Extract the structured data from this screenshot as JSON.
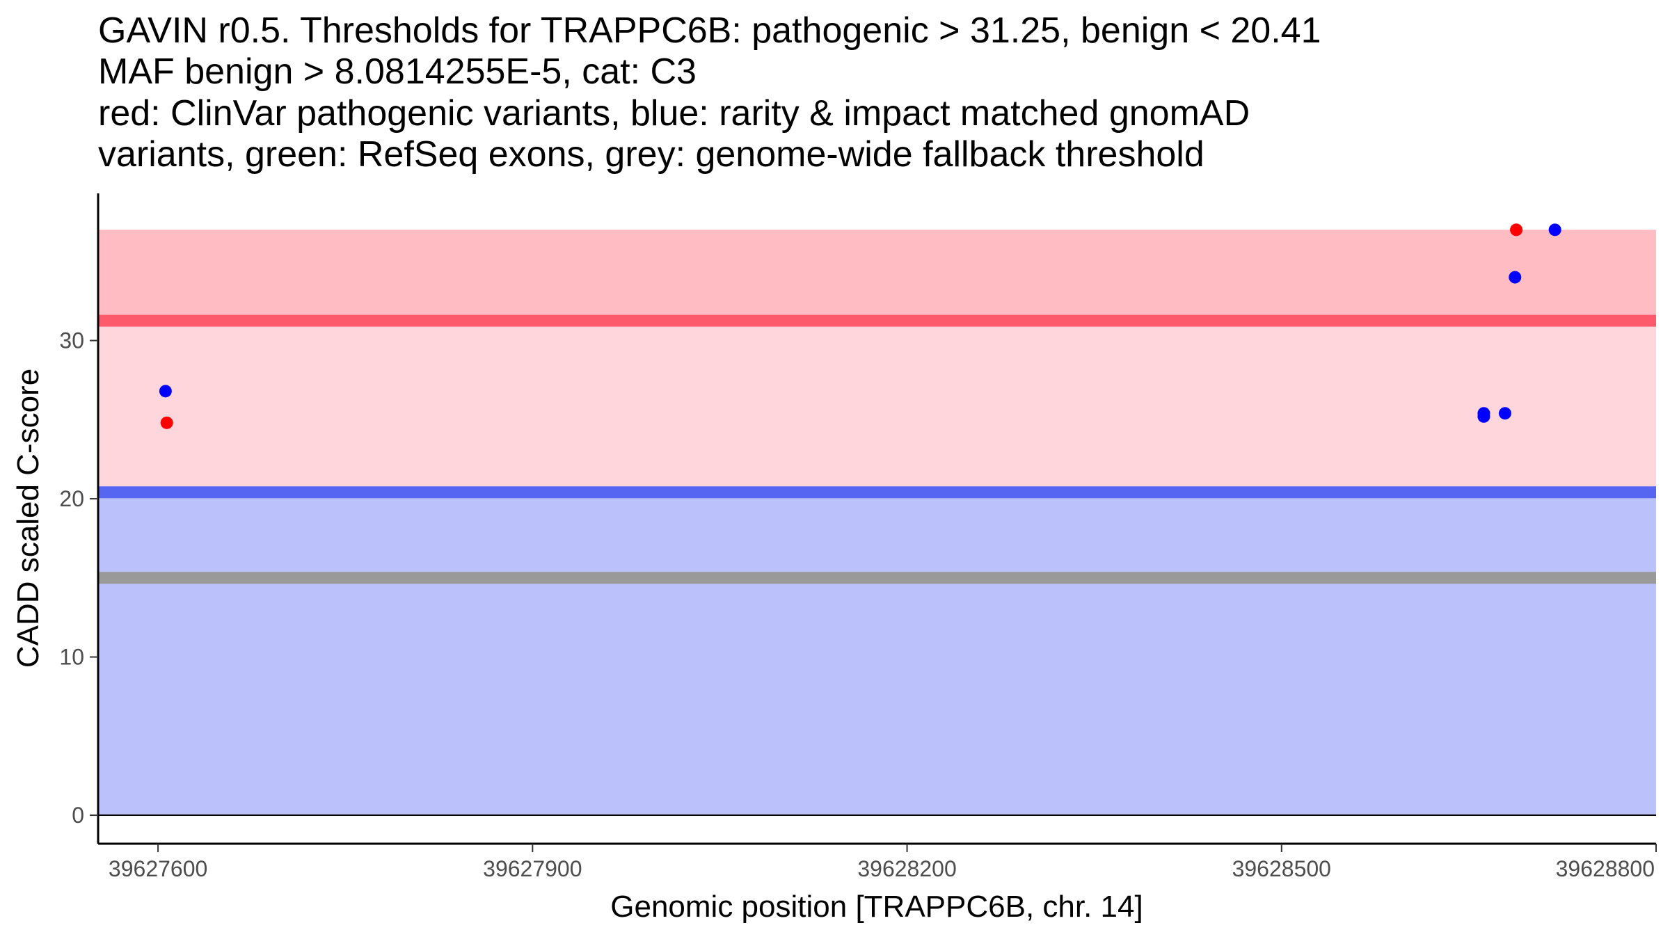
{
  "chart_data": {
    "type": "scatter",
    "title_lines": [
      "GAVIN r0.5. Thresholds for TRAPPC6B: pathogenic > 31.25, benign < 20.41",
      "MAF benign > 8.0814255E-5, cat: C3",
      "red: ClinVar pathogenic variants, blue: rarity & impact matched gnomAD",
      "variants, green: RefSeq exons, grey: genome-wide fallback threshold"
    ],
    "xlabel": "Genomic position [TRAPPC6B, chr. 14]",
    "ylabel": "CADD scaled C-score",
    "xlim": [
      39627552,
      39628800
    ],
    "ylim": [
      -1.8,
      39.3
    ],
    "x_ticks": [
      39627600,
      39627900,
      39628200,
      39628500,
      39628800
    ],
    "x_tick_labels": [
      "39627600",
      "39627900",
      "39628200",
      "39628500",
      "39628800"
    ],
    "y_ticks": [
      0,
      10,
      20,
      30
    ],
    "y_tick_labels": [
      "0",
      "10",
      "20",
      "30"
    ],
    "thresholds": {
      "pathogenic": 31.25,
      "benign": 20.41,
      "fallback": 15.0,
      "max_score": 37.0
    },
    "bands": [
      {
        "name": "benign-region",
        "from": 0,
        "to": 20.41,
        "color": "#bbc1fb"
      },
      {
        "name": "intermediate-region",
        "from": 20.41,
        "to": 31.25,
        "color": "#ffd6dc"
      },
      {
        "name": "pathogenic-region",
        "from": 31.25,
        "to": 37.0,
        "color": "#ffbcc2"
      }
    ],
    "threshold_lines": [
      {
        "name": "pathogenic-threshold-line",
        "value": 31.25,
        "color": "#fd5a6b"
      },
      {
        "name": "benign-threshold-line",
        "value": 20.41,
        "color": "#5666f0"
      },
      {
        "name": "fallback-threshold-line",
        "value": 15.0,
        "color": "#999999"
      }
    ],
    "series": [
      {
        "name": "ClinVar pathogenic variants",
        "color": "#ff0000",
        "points": [
          {
            "x": 39627607,
            "y": 24.8
          },
          {
            "x": 39628688,
            "y": 37.0
          }
        ]
      },
      {
        "name": "rarity & impact matched gnomAD variants",
        "color": "#0000ff",
        "points": [
          {
            "x": 39627606,
            "y": 26.8
          },
          {
            "x": 39628662,
            "y": 25.4
          },
          {
            "x": 39628662,
            "y": 25.2
          },
          {
            "x": 39628679,
            "y": 25.4
          },
          {
            "x": 39628687,
            "y": 34.0
          },
          {
            "x": 39628719,
            "y": 37.0
          }
        ]
      }
    ]
  }
}
